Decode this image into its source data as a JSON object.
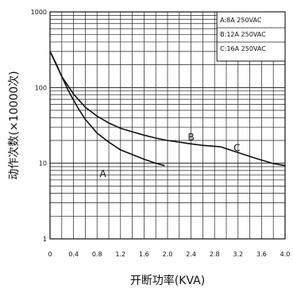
{
  "chart_data": {
    "type": "line",
    "title": "",
    "xlabel": "开断功率(KVA)",
    "ylabel": "动作次数(×10000次)",
    "x_ticks": [
      "0",
      "0.4",
      "0.8",
      "1.2",
      "1.6",
      "2.0",
      "2.4",
      "2.8",
      "3.2",
      "3.6",
      "4.0"
    ],
    "x_tick_values": [
      0,
      0.4,
      0.8,
      1.2,
      1.6,
      2.0,
      2.4,
      2.8,
      3.2,
      3.6,
      4.0
    ],
    "y_ticks": [
      "1",
      "10",
      "100",
      "1000"
    ],
    "y_tick_values": [
      1,
      10,
      100,
      1000
    ],
    "xlim": [
      0,
      4.0
    ],
    "ylim": [
      1,
      1000
    ],
    "y_scale": "log",
    "grid": true,
    "legend_position": "top-right",
    "legend": [
      "A:8A 250VAC",
      "B:12A 250VAC",
      "C:16A 250VAC"
    ],
    "series": [
      {
        "name": "A",
        "x": [
          0,
          0.1,
          0.2,
          0.3,
          0.4,
          0.5,
          0.6,
          0.8,
          1.0,
          1.2,
          1.4,
          1.6,
          1.8,
          1.95
        ],
        "y": [
          300,
          210,
          140,
          95,
          68,
          50,
          38,
          25,
          19,
          15,
          13,
          11.3,
          10,
          9.3
        ]
      },
      {
        "name": "B",
        "x": [
          0,
          0.2,
          0.4,
          0.6,
          0.8,
          1.0,
          1.2,
          1.4,
          1.6,
          1.8,
          2.0,
          2.2,
          2.4,
          2.6,
          2.9
        ],
        "y": [
          300,
          140,
          82,
          55,
          42,
          34,
          29,
          26,
          23.5,
          21.5,
          20,
          19,
          18,
          17.2,
          16.5
        ]
      },
      {
        "name": "C",
        "x": [
          2.9,
          3.2,
          3.5,
          3.8,
          4.0
        ],
        "y": [
          16.5,
          13.8,
          11.6,
          9.9,
          9.3
        ]
      }
    ],
    "curve_labels": [
      {
        "text": "A",
        "x": 0.9,
        "y": 6.6
      },
      {
        "text": "B",
        "x": 2.4,
        "y": 20
      },
      {
        "text": "C",
        "x": 3.18,
        "y": 14.5
      }
    ]
  }
}
